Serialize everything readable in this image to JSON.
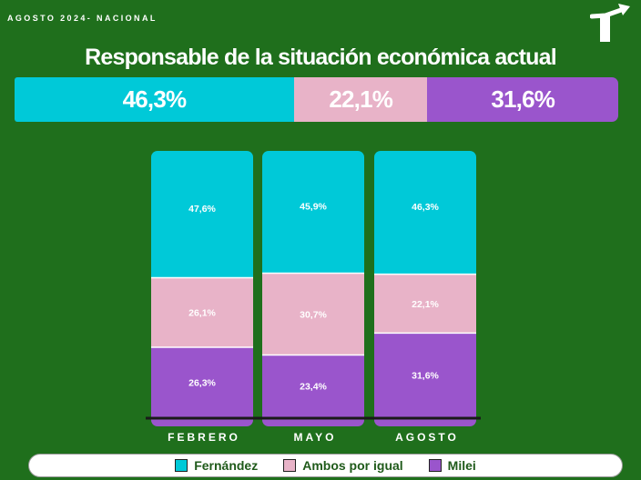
{
  "header": {
    "label": "AGOSTO 2024- NACIONAL"
  },
  "title": "Responsable de la situación económica actual",
  "colors": {
    "fernandez": "#00c9d8",
    "ambos": "#e8b3c8",
    "milei": "#9a55cc",
    "background": "#1f6f1c"
  },
  "summary": [
    {
      "key": "fernandez",
      "label": "46,3%",
      "value": 46.3
    },
    {
      "key": "ambos",
      "label": "22,1%",
      "value": 22.1
    },
    {
      "key": "milei",
      "label": "31,6%",
      "value": 31.6
    }
  ],
  "chart_data": {
    "type": "bar",
    "stacked": true,
    "title": "Responsable de la situación económica actual",
    "categories": [
      "FEBRERO",
      "MAYO",
      "AGOSTO"
    ],
    "series": [
      {
        "name": "Fernández",
        "key": "fernandez",
        "values": [
          47.6,
          45.9,
          46.3
        ],
        "labels": [
          "47,6%",
          "45,9%",
          "46,3%"
        ]
      },
      {
        "name": "Ambos por igual",
        "key": "ambos",
        "values": [
          26.1,
          30.7,
          22.1
        ],
        "labels": [
          "26,1%",
          "30,7%",
          "22,1%"
        ]
      },
      {
        "name": "Milei",
        "key": "milei",
        "values": [
          26.3,
          23.4,
          31.6
        ],
        "labels": [
          "26,3%",
          "23,4%",
          "31,6%"
        ]
      }
    ],
    "ylim": [
      0,
      100
    ],
    "legend_position": "bottom"
  },
  "legend": [
    {
      "key": "fernandez",
      "label": "Fernández"
    },
    {
      "key": "ambos",
      "label": "Ambos por igual"
    },
    {
      "key": "milei",
      "label": "Milei"
    }
  ]
}
